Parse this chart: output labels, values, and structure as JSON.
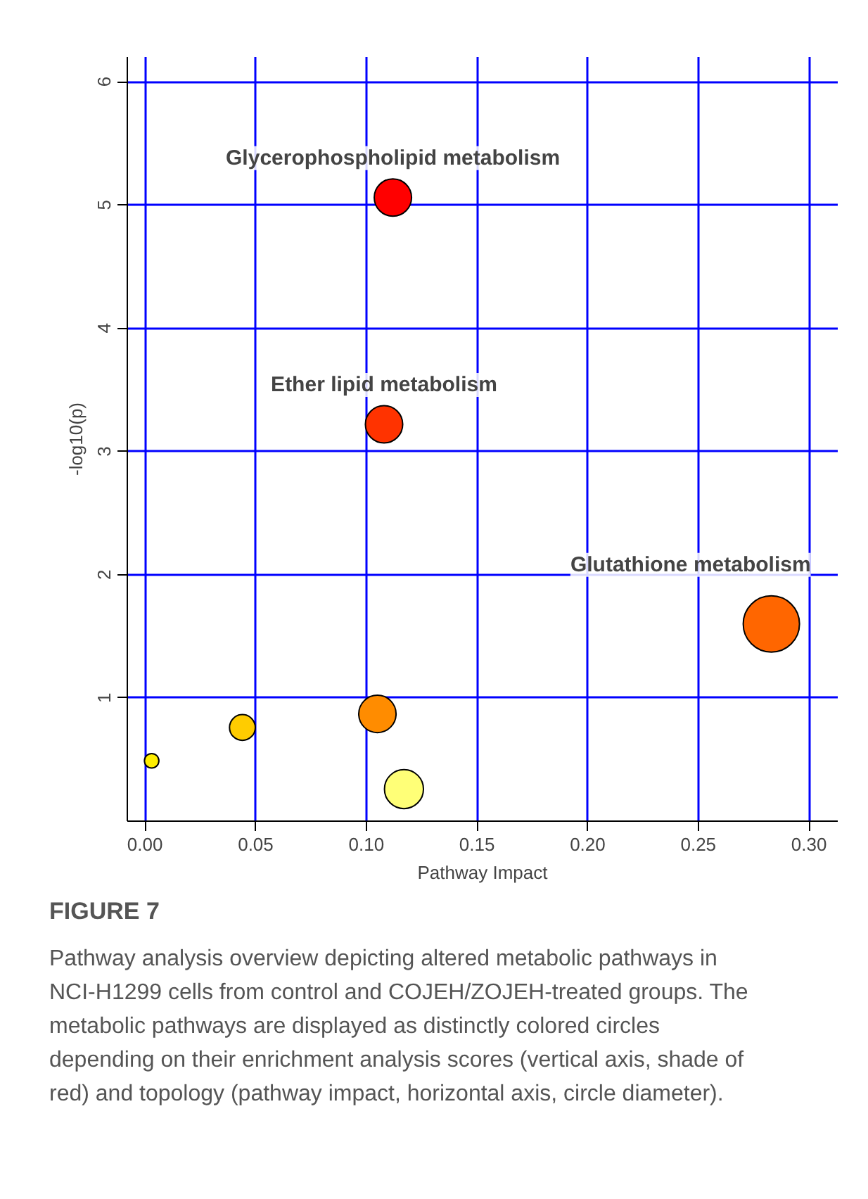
{
  "chart_data": {
    "type": "bubble",
    "xlabel": "Pathway Impact",
    "ylabel": "-log10(p)",
    "x": [
      0.003,
      0.044,
      0.105,
      0.117,
      0.108,
      0.112,
      0.283
    ],
    "values": [
      0.49,
      0.76,
      0.87,
      0.26,
      3.22,
      5.06,
      1.6
    ],
    "sizes": [
      0.066,
      0.21,
      0.44,
      0.48,
      0.44,
      0.44,
      1
    ],
    "colors": [
      "#ffee00",
      "#ffcc00",
      "#ff8c00",
      "#ffff77",
      "#ff3300",
      "#ff0000",
      "#ff6600"
    ],
    "xlim": [
      -0.008,
      0.313
    ],
    "ylim": [
      0,
      6.2
    ],
    "xticks": [
      {
        "value": 0,
        "label": "0.00"
      },
      0.05,
      {
        "value": 0.1,
        "label": "0.10"
      },
      0.15,
      {
        "value": 0.2,
        "label": "0.20"
      },
      0.25,
      {
        "value": 0.3,
        "label": "0.30"
      }
    ],
    "yticks": [
      1,
      2,
      3,
      4,
      5,
      6
    ],
    "grid": true,
    "annotations": [
      {
        "text": "Glycerophospholipid metabolism",
        "x": 0.112,
        "y": 5.06
      },
      {
        "text": "Ether lipid metabolism",
        "x": 0.108,
        "y": 3.22
      },
      {
        "text": "Glutathione metabolism",
        "x": 0.283,
        "y": 1.6
      },
      "FIGURE 7",
      "Pathway analysis overview depicting altered metabolic pathways in NCI-H1299 cells from control and COJEH/ZOJEH-treated groups. The metabolic pathways are displayed as distinctly colored circles depending on their enrichment analysis scores (vertical axis, shade of red) and topology (pathway impact, horizontal axis, circle diameter)."
    ]
  }
}
